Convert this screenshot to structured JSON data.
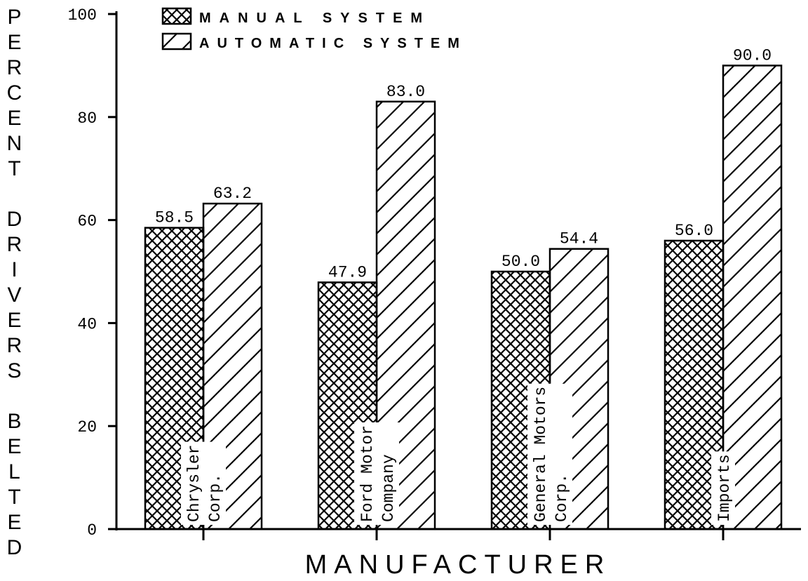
{
  "chart_data": {
    "type": "bar",
    "x_label": "MANUFACTURER",
    "y_label": "PERCENT DRIVERS BELTED",
    "categories": [
      [
        "Chrysler",
        "Corp."
      ],
      [
        "Ford Motor",
        "Company"
      ],
      [
        "General Motors",
        "Corp."
      ],
      [
        "Imports"
      ]
    ],
    "series": [
      {
        "name": "MANUAL SYSTEM",
        "color": "#000000",
        "pattern": "crosshatch",
        "values": [
          58.5,
          47.9,
          50.0,
          56.0
        ],
        "value_labels": [
          "58.5",
          "47.9",
          "50.0",
          "56.0"
        ]
      },
      {
        "name": "AUTOMATIC SYSTEM",
        "color": "#000000",
        "pattern": "hatch",
        "values": [
          63.2,
          83.0,
          54.4,
          90.0
        ],
        "value_labels": [
          "63.2",
          "83.0",
          "54.4",
          "90.0"
        ]
      }
    ],
    "ylim": [
      0,
      100
    ],
    "yticks": [
      0,
      20,
      40,
      60,
      80,
      100
    ],
    "grid": false,
    "legend": "top-left"
  }
}
